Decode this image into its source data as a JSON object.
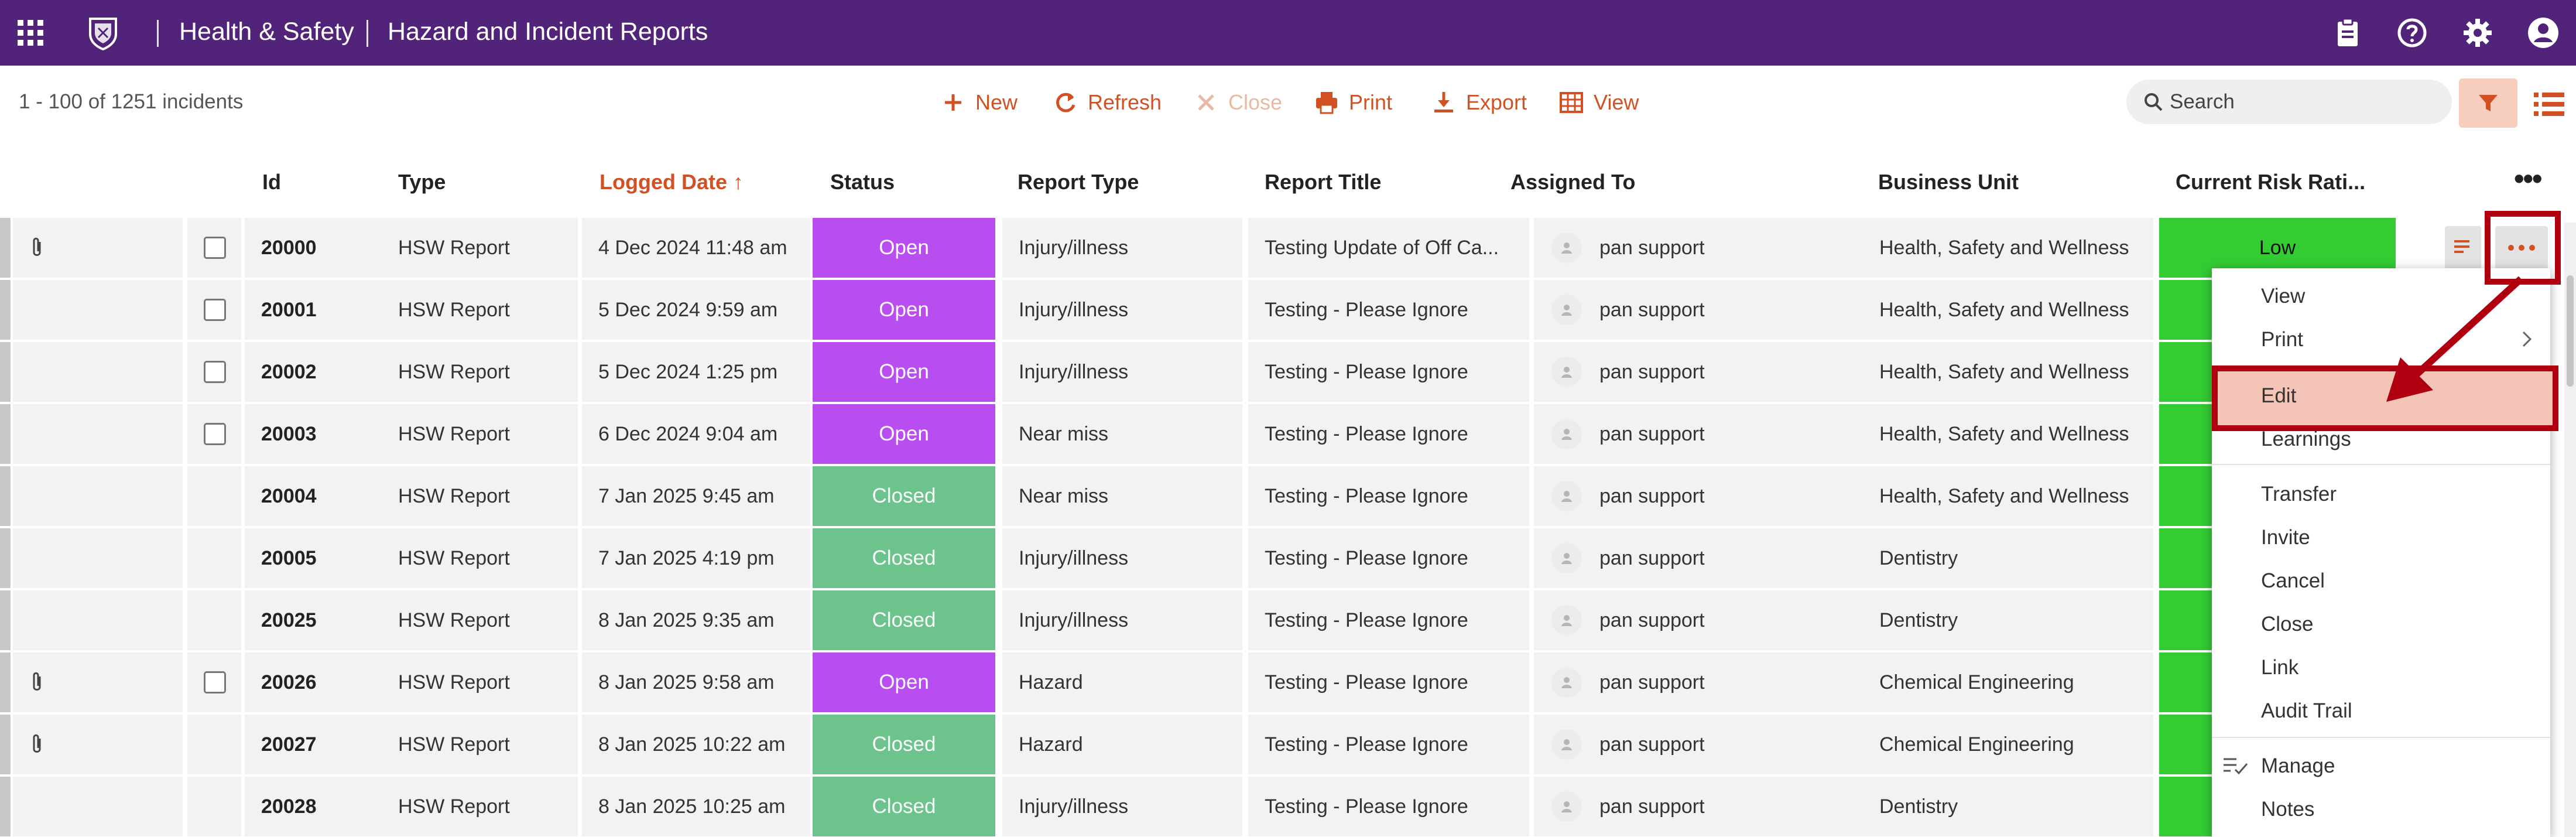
{
  "header": {
    "app": "Health & Safety",
    "page": "Hazard and Incident Reports"
  },
  "toolbar": {
    "count": "1 - 100 of 1251 incidents",
    "new": "New",
    "refresh": "Refresh",
    "close": "Close",
    "print": "Print",
    "export": "Export",
    "view": "View",
    "search_placeholder": "Search"
  },
  "columns": {
    "id": "Id",
    "type": "Type",
    "logged": "Logged Date ↑",
    "status": "Status",
    "report_type": "Report Type",
    "report_title": "Report Title",
    "assigned": "Assigned To",
    "business_unit": "Business Unit",
    "risk": "Current Risk Rati..."
  },
  "rows": [
    {
      "id": "20000",
      "type": "HSW Report",
      "logged": "4 Dec 2024 11:48 am",
      "status": "Open",
      "report_type": "Injury/illness",
      "title": "Testing Update of Off Ca...",
      "assigned": "pan support",
      "unit": "Health, Safety and Wellness",
      "risk": "Low"
    },
    {
      "id": "20001",
      "type": "HSW Report",
      "logged": "5 Dec 2024 9:59 am",
      "status": "Open",
      "report_type": "Injury/illness",
      "title": "Testing - Please Ignore",
      "assigned": "pan support",
      "unit": "Health, Safety and Wellness",
      "risk": ""
    },
    {
      "id": "20002",
      "type": "HSW Report",
      "logged": "5 Dec 2024 1:25 pm",
      "status": "Open",
      "report_type": "Injury/illness",
      "title": "Testing - Please Ignore",
      "assigned": "pan support",
      "unit": "Health, Safety and Wellness",
      "risk": ""
    },
    {
      "id": "20003",
      "type": "HSW Report",
      "logged": "6 Dec 2024 9:04 am",
      "status": "Open",
      "report_type": "Near miss",
      "title": "Testing - Please Ignore",
      "assigned": "pan support",
      "unit": "Health, Safety and Wellness",
      "risk": ""
    },
    {
      "id": "20004",
      "type": "HSW Report",
      "logged": "7 Jan 2025 9:45 am",
      "status": "Closed",
      "report_type": "Near miss",
      "title": "Testing - Please Ignore",
      "assigned": "pan support",
      "unit": "Health, Safety and Wellness",
      "risk": ""
    },
    {
      "id": "20005",
      "type": "HSW Report",
      "logged": "7 Jan 2025 4:19 pm",
      "status": "Closed",
      "report_type": "Injury/illness",
      "title": "Testing - Please Ignore",
      "assigned": "pan support",
      "unit": "Dentistry",
      "risk": ""
    },
    {
      "id": "20025",
      "type": "HSW Report",
      "logged": "8 Jan 2025 9:35 am",
      "status": "Closed",
      "report_type": "Injury/illness",
      "title": "Testing - Please Ignore",
      "assigned": "pan support",
      "unit": "Dentistry",
      "risk": ""
    },
    {
      "id": "20026",
      "type": "HSW Report",
      "logged": "8 Jan 2025 9:58 am",
      "status": "Open",
      "report_type": "Hazard",
      "title": "Testing - Please Ignore",
      "assigned": "pan support",
      "unit": "Chemical Engineering",
      "risk": ""
    },
    {
      "id": "20027",
      "type": "HSW Report",
      "logged": "8 Jan 2025 10:22 am",
      "status": "Closed",
      "report_type": "Hazard",
      "title": "Testing - Please Ignore",
      "assigned": "pan support",
      "unit": "Chemical Engineering",
      "risk": ""
    },
    {
      "id": "20028",
      "type": "HSW Report",
      "logged": "8 Jan 2025 10:25 am",
      "status": "Closed",
      "report_type": "Injury/illness",
      "title": "Testing - Please Ignore",
      "assigned": "pan support",
      "unit": "Dentistry",
      "risk": ""
    }
  ],
  "menu": {
    "view": "View",
    "print": "Print",
    "edit": "Edit",
    "learnings": "Learnings",
    "transfer": "Transfer",
    "invite": "Invite",
    "cancel": "Cancel",
    "close": "Close",
    "link": "Link",
    "audit_trail": "Audit Trail",
    "manage": "Manage",
    "notes": "Notes"
  },
  "colors": {
    "header_bg": "#522479",
    "accent": "#d25123",
    "status_open": "#b94ef0",
    "status_closed": "#6cc38c",
    "risk_low": "#33cc33",
    "annotation_red": "#b00010"
  }
}
